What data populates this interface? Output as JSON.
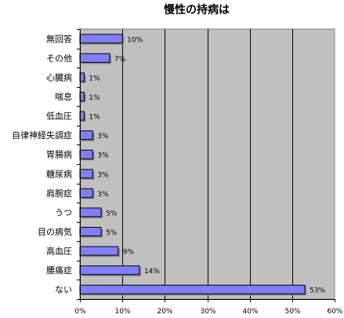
{
  "chart_data": {
    "type": "bar",
    "orientation": "horizontal",
    "title": "慢性の持病は",
    "categories": [
      "無回答",
      "その他",
      "心臓病",
      "喘息",
      "低血圧",
      "自律神経失調症",
      "胃腸病",
      "糖尿病",
      "肩腕症",
      "うつ",
      "目の病気",
      "高血圧",
      "腰痛症",
      "ない"
    ],
    "values": [
      10,
      7,
      1,
      1,
      1,
      3,
      3,
      3,
      3,
      5,
      5,
      9,
      14,
      53
    ],
    "value_labels": [
      "10%",
      "7%",
      "1%",
      "1%",
      "1%",
      "3%",
      "3%",
      "3%",
      "3%",
      "5%",
      "5%",
      "9%",
      "14%",
      "53%"
    ],
    "xlim": [
      0,
      60
    ],
    "xticks": [
      0,
      10,
      20,
      30,
      40,
      50,
      60
    ],
    "xtick_labels": [
      "0%",
      "10%",
      "20%",
      "30%",
      "40%",
      "50%",
      "60%"
    ],
    "xlabel": "",
    "ylabel": "",
    "grid": "vertical",
    "legend": "none",
    "colors": {
      "plot_background": "#c0c0c0",
      "bar_fill": "#8080ff",
      "bar_stroke": "#000000",
      "grid": "#000000",
      "shadow": "#808080"
    }
  }
}
